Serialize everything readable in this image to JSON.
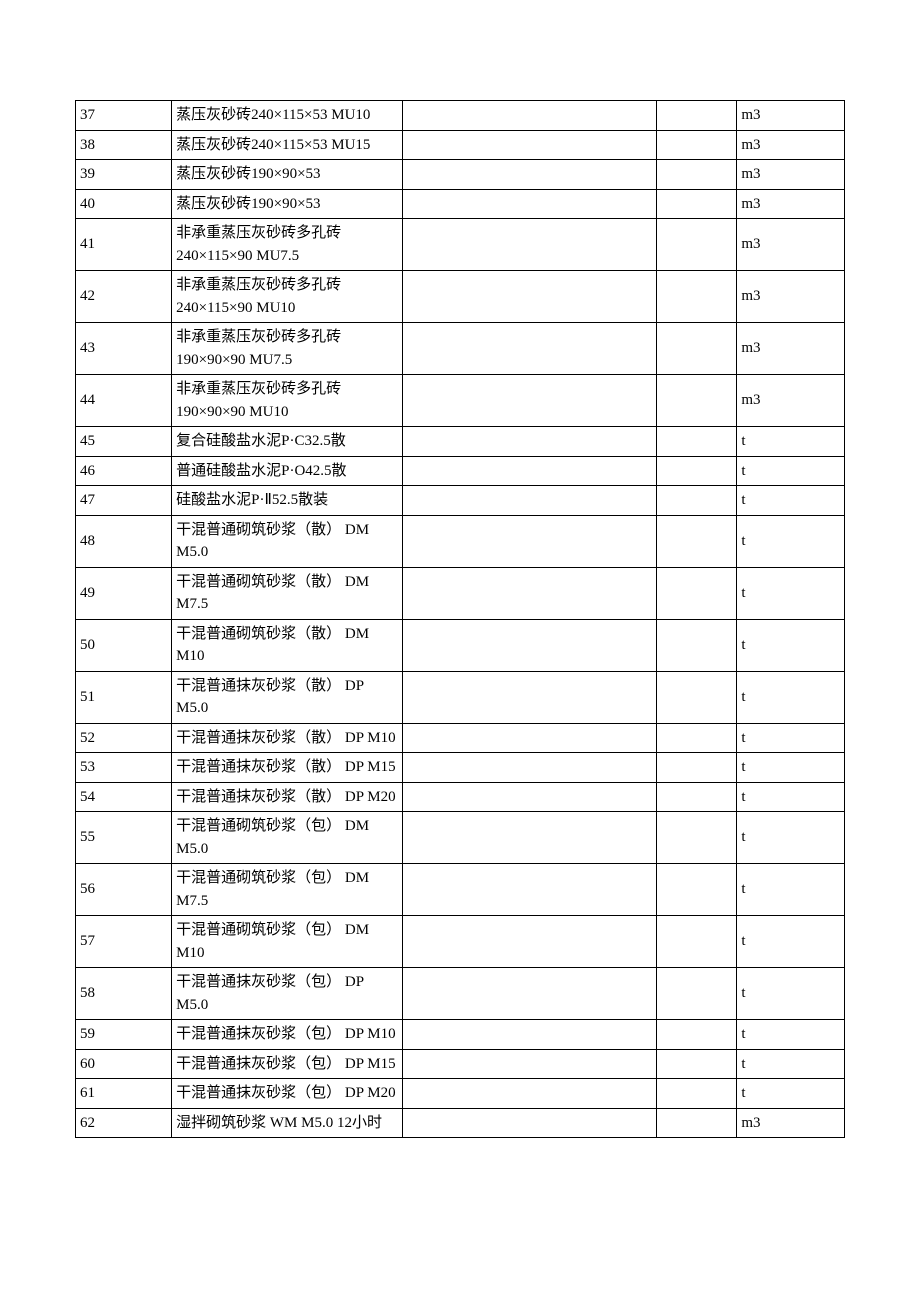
{
  "table_style": {
    "background_color": "#ffffff",
    "border_color": "#000000",
    "text_color": "#000000",
    "font_family": "SimSun",
    "font_size": 15,
    "line_height": 1.5,
    "col_widths_pct": [
      12.5,
      30,
      33,
      10.5,
      14
    ]
  },
  "rows": [
    {
      "num": "37",
      "desc": "蒸压灰砂砖240×115×53 MU10",
      "c3": "",
      "c4": "",
      "unit": "m3"
    },
    {
      "num": "38",
      "desc": "蒸压灰砂砖240×115×53 MU15",
      "c3": "",
      "c4": "",
      "unit": "m3"
    },
    {
      "num": "39",
      "desc": "蒸压灰砂砖190×90×53",
      "c3": "",
      "c4": "",
      "unit": "m3"
    },
    {
      "num": "40",
      "desc": "蒸压灰砂砖190×90×53",
      "c3": "",
      "c4": "",
      "unit": "m3"
    },
    {
      "num": "41",
      "desc": "非承重蒸压灰砂砖多孔砖240×115×90 MU7.5",
      "c3": "",
      "c4": "",
      "unit": "m3"
    },
    {
      "num": "42",
      "desc": "非承重蒸压灰砂砖多孔砖240×115×90 MU10",
      "c3": "",
      "c4": "",
      "unit": "m3"
    },
    {
      "num": "43",
      "desc": "非承重蒸压灰砂砖多孔砖190×90×90 MU7.5",
      "c3": "",
      "c4": "",
      "unit": "m3"
    },
    {
      "num": "44",
      "desc": "非承重蒸压灰砂砖多孔砖190×90×90 MU10",
      "c3": "",
      "c4": "",
      "unit": "m3"
    },
    {
      "num": "45",
      "desc": "复合硅酸盐水泥P·C32.5散",
      "c3": "",
      "c4": "",
      "unit": "t"
    },
    {
      "num": "46",
      "desc": "普通硅酸盐水泥P·O42.5散",
      "c3": "",
      "c4": "",
      "unit": "t"
    },
    {
      "num": "47",
      "desc": "硅酸盐水泥P·Ⅱ52.5散装",
      "c3": "",
      "c4": "",
      "unit": "t"
    },
    {
      "num": "48",
      "desc": "干混普通砌筑砂浆（散） DM M5.0",
      "c3": "",
      "c4": "",
      "unit": "t"
    },
    {
      "num": "49",
      "desc": "干混普通砌筑砂浆（散） DM M7.5",
      "c3": "",
      "c4": "",
      "unit": "t"
    },
    {
      "num": "50",
      "desc": "干混普通砌筑砂浆（散） DM M10",
      "c3": "",
      "c4": "",
      "unit": "t"
    },
    {
      "num": "51",
      "desc": "干混普通抹灰砂浆（散） DP M5.0",
      "c3": "",
      "c4": "",
      "unit": "t"
    },
    {
      "num": "52",
      "desc": "干混普通抹灰砂浆（散） DP M10",
      "c3": "",
      "c4": "",
      "unit": "t"
    },
    {
      "num": "53",
      "desc": "干混普通抹灰砂浆（散） DP M15",
      "c3": "",
      "c4": "",
      "unit": "t"
    },
    {
      "num": "54",
      "desc": "干混普通抹灰砂浆（散） DP M20",
      "c3": "",
      "c4": "",
      "unit": "t"
    },
    {
      "num": "55",
      "desc": "干混普通砌筑砂浆（包） DM M5.0",
      "c3": "",
      "c4": "",
      "unit": "t"
    },
    {
      "num": "56",
      "desc": "干混普通砌筑砂浆（包） DM M7.5",
      "c3": "",
      "c4": "",
      "unit": "t"
    },
    {
      "num": "57",
      "desc": "干混普通砌筑砂浆（包） DM M10",
      "c3": "",
      "c4": "",
      "unit": "t"
    },
    {
      "num": "58",
      "desc": "干混普通抹灰砂浆（包） DP M5.0",
      "c3": "",
      "c4": "",
      "unit": "t"
    },
    {
      "num": "59",
      "desc": "干混普通抹灰砂浆（包） DP M10",
      "c3": "",
      "c4": "",
      "unit": "t"
    },
    {
      "num": "60",
      "desc": "干混普通抹灰砂浆（包） DP M15",
      "c3": "",
      "c4": "",
      "unit": "t"
    },
    {
      "num": "61",
      "desc": "干混普通抹灰砂浆（包） DP M20",
      "c3": "",
      "c4": "",
      "unit": "t"
    },
    {
      "num": "62",
      "desc": "湿拌砌筑砂浆 WM M5.0 12小时",
      "c3": "",
      "c4": "",
      "unit": "m3"
    }
  ]
}
